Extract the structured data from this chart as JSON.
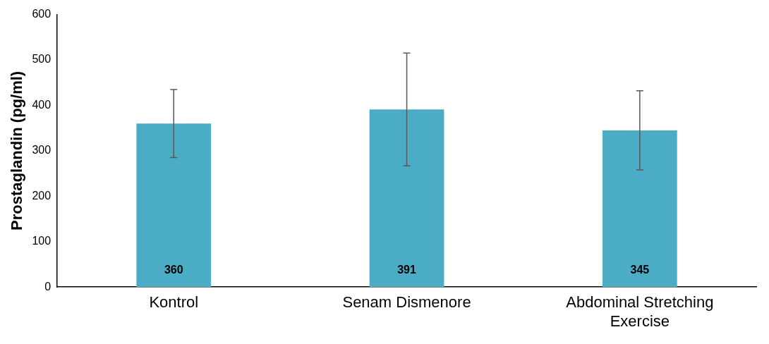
{
  "chart_data": {
    "type": "bar",
    "ylabel": "Prostaglandin (pg/ml)",
    "categories": [
      "Kontrol",
      "Senam Dismenore",
      "Abdominal Stretching Exercise"
    ],
    "values": [
      360,
      391,
      345
    ],
    "errors": [
      75,
      124,
      87
    ],
    "color": "#4bacc6",
    "ylim": [
      0,
      600
    ],
    "yticks": [
      0,
      100,
      200,
      300,
      400,
      500,
      600
    ],
    "grid": false,
    "legend": false,
    "data_labels": true
  }
}
